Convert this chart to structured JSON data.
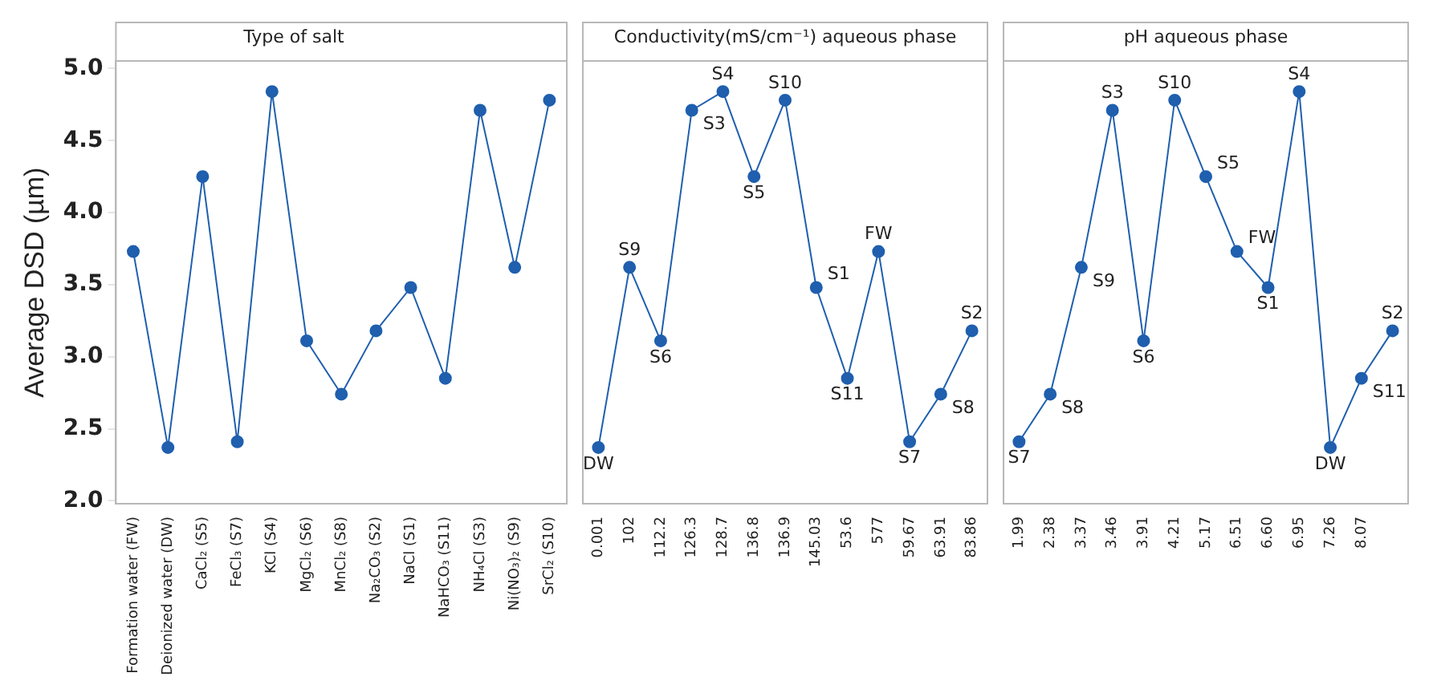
{
  "chart_data": [
    {
      "type": "line",
      "title": "Type of salt",
      "ylabel": "Average DSD (µm)",
      "categories": [
        "Formation water (FW)",
        "Deionized water (DW)",
        "CaCl₂ (S5)",
        "FeCl₃ (S7)",
        "KCl (S4)",
        "MgCl₂ (S6)",
        "MnCl₂ (S8)",
        "Na₂CO₃ (S2)",
        "NaCl (S1)",
        "NaHCO₃ (S11)",
        "NH₄Cl (S3)",
        "Ni(NO₃)₂ (S9)",
        "SrCl₂ (S10)"
      ],
      "series": [
        {
          "color": "#1f5fae",
          "values": [
            3.73,
            2.37,
            4.25,
            2.41,
            4.84,
            3.11,
            2.74,
            3.18,
            3.48,
            2.85,
            4.71,
            3.62,
            4.78
          ]
        }
      ],
      "ylim": [
        1.98,
        5.05
      ],
      "yticks": [
        {
          "value": 2,
          "label": "2.0"
        },
        {
          "value": 2.5,
          "label": "2.5"
        },
        {
          "value": 3,
          "label": "3.0"
        },
        {
          "value": 3.5,
          "label": "3.5"
        },
        {
          "value": 4,
          "label": "4.0"
        },
        {
          "value": 4.5,
          "label": "4.5"
        },
        {
          "value": 5,
          "label": "5.0"
        }
      ],
      "grid": false,
      "legend": false,
      "marker": "circle",
      "line_style": "solid"
    },
    {
      "type": "line",
      "title": "Conductivity(mS/cm⁻¹) aqueous phase",
      "categories": [
        "0.001",
        "102",
        "112.2",
        "126.3",
        "128.7",
        "136.8",
        "136.9",
        "145.03",
        "53.6",
        "577",
        "59.67",
        "63.91",
        "83.86"
      ],
      "series": [
        {
          "color": "#1f5fae",
          "values": [
            2.37,
            3.62,
            3.11,
            4.71,
            4.84,
            4.25,
            4.78,
            3.48,
            2.85,
            3.73,
            2.41,
            2.74,
            3.18
          ],
          "value_labels": [
            "DW",
            "S9",
            "S6",
            "S3",
            "S4",
            "S5",
            "S10",
            "S1",
            "S11",
            "FW",
            "S7",
            "S8",
            "S2"
          ]
        }
      ],
      "ylim": [
        1.98,
        5.05
      ],
      "tick_labels": "x",
      "grid": false,
      "legend": false,
      "marker": "circle",
      "line_style": "solid"
    },
    {
      "type": "line",
      "title": "pH aqueous phase",
      "categories": [
        "1.99",
        "2.38",
        "3.37",
        "3.46",
        "3.91",
        "4.21",
        "5.17",
        "6.51",
        "6.60",
        "6.95",
        "7.26",
        "8.07",
        null
      ],
      "series": [
        {
          "color": "#1f5fae",
          "values": [
            2.41,
            2.74,
            3.62,
            4.71,
            3.11,
            4.78,
            4.25,
            3.73,
            3.48,
            4.84,
            2.37,
            2.85,
            3.18
          ],
          "value_labels": [
            "S7",
            "S8",
            "S9",
            "S3",
            "S6",
            "S10",
            "S5",
            "FW",
            "S1",
            "S4",
            "DW",
            "S11",
            "S2"
          ]
        }
      ],
      "ylim": [
        1.98,
        5.05
      ],
      "tick_labels": "x",
      "grid": false,
      "legend": false,
      "marker": "circle",
      "line_style": "solid"
    }
  ]
}
